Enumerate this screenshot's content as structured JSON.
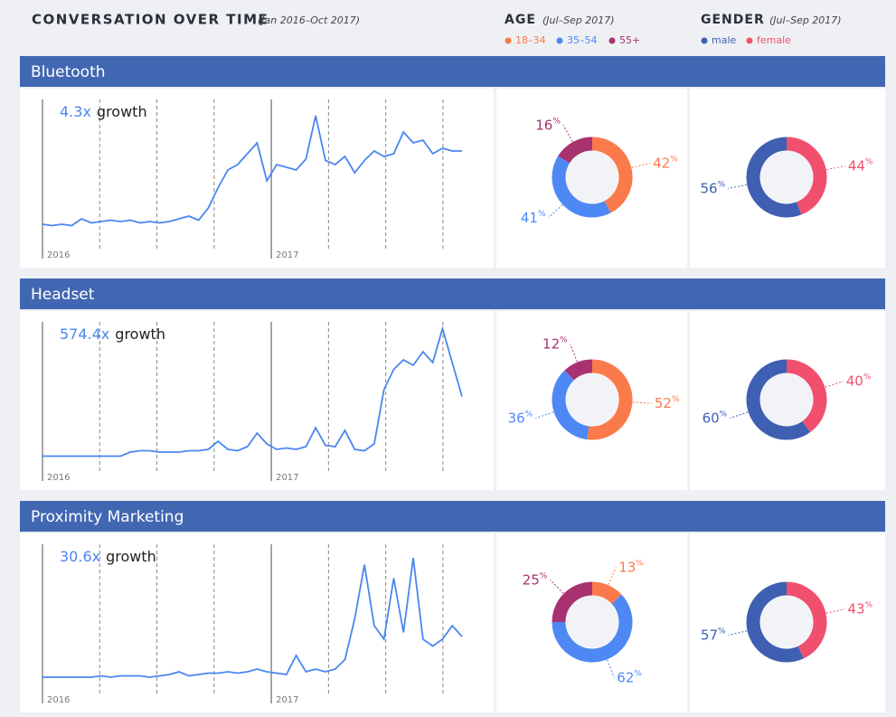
{
  "header": {
    "title": "CONVERSATION OVER TIME",
    "subtitle": "(Jan 2016–Oct 2017)"
  },
  "age_legend": {
    "title": "AGE",
    "period": "(Jul–Sep 2017)",
    "labels": [
      "18–34",
      "35–54",
      "55+"
    ],
    "colors": [
      "#fb7a4b",
      "#4e88f5",
      "#a83270"
    ]
  },
  "gender_legend": {
    "title": "GENDER",
    "period": "(Jul–Sep 2017)",
    "labels": [
      "male",
      "female"
    ],
    "colors": [
      "#3f5fb2",
      "#f0506e"
    ]
  },
  "years": [
    "2016",
    "2017"
  ],
  "growth_word": "growth",
  "unit": "%",
  "line_color": "#4a86f0",
  "panels": [
    {
      "title": "Bluetooth",
      "growth": "4.3x",
      "trend": [
        8,
        7,
        8,
        7,
        12,
        9,
        10,
        11,
        10,
        11,
        9,
        10,
        9,
        10,
        12,
        14,
        11,
        20,
        35,
        48,
        52,
        60,
        68,
        40,
        52,
        50,
        48,
        56,
        88,
        55,
        52,
        58,
        46,
        55,
        62,
        58,
        60,
        76,
        68,
        70,
        60,
        64,
        62,
        62
      ],
      "age": [
        42,
        41,
        16
      ],
      "gender": [
        56,
        44
      ]
    },
    {
      "title": "Headset",
      "growth": "574.4x",
      "trend": [
        1,
        1,
        1,
        1,
        1,
        1,
        1,
        1,
        1,
        4,
        5,
        5,
        4,
        4,
        4,
        5,
        5,
        6,
        12,
        6,
        5,
        8,
        18,
        10,
        6,
        7,
        6,
        8,
        22,
        9,
        8,
        20,
        6,
        5,
        10,
        50,
        65,
        72,
        68,
        78,
        70,
        95,
        70,
        45
      ],
      "age": [
        52,
        36,
        12
      ],
      "gender": [
        60,
        40
      ]
    },
    {
      "title": "Proximity Marketing",
      "growth": "30.6x",
      "trend": [
        2,
        2,
        2,
        2,
        2,
        2,
        3,
        2,
        3,
        3,
        3,
        2,
        3,
        4,
        6,
        3,
        4,
        5,
        5,
        6,
        5,
        6,
        8,
        6,
        5,
        4,
        18,
        6,
        8,
        6,
        8,
        15,
        45,
        85,
        40,
        30,
        75,
        35,
        90,
        30,
        25,
        30,
        40,
        32
      ],
      "age": [
        13,
        62,
        25
      ],
      "gender": [
        57,
        43
      ]
    }
  ]
}
